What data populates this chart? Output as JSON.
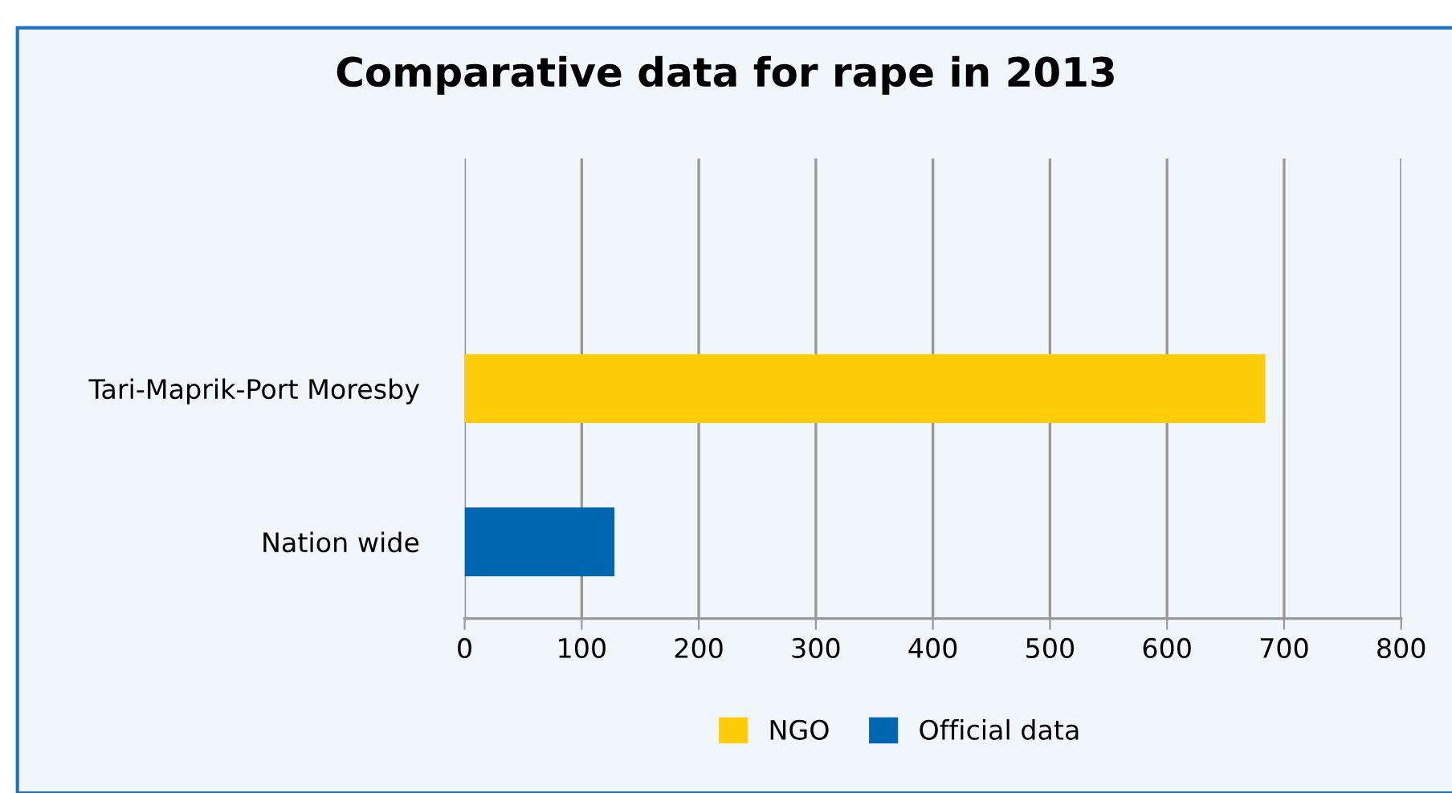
{
  "chart_data": {
    "type": "bar",
    "orientation": "horizontal",
    "title": "Comparative data for rape in 2013",
    "categories": [
      null,
      "Tari-Maprik-Port Moresby",
      "Nation wide"
    ],
    "series": [
      {
        "name": "NGO",
        "color": "#ffcc0a",
        "values": [
          null,
          684,
          null
        ]
      },
      {
        "name": "Official data",
        "color": "#0066b0",
        "values": [
          null,
          null,
          128
        ]
      }
    ],
    "xlim": [
      0,
      800
    ],
    "xticks": [
      0,
      100,
      200,
      300,
      400,
      500,
      600,
      700,
      800
    ],
    "grid": "x",
    "legend": "bottom"
  }
}
